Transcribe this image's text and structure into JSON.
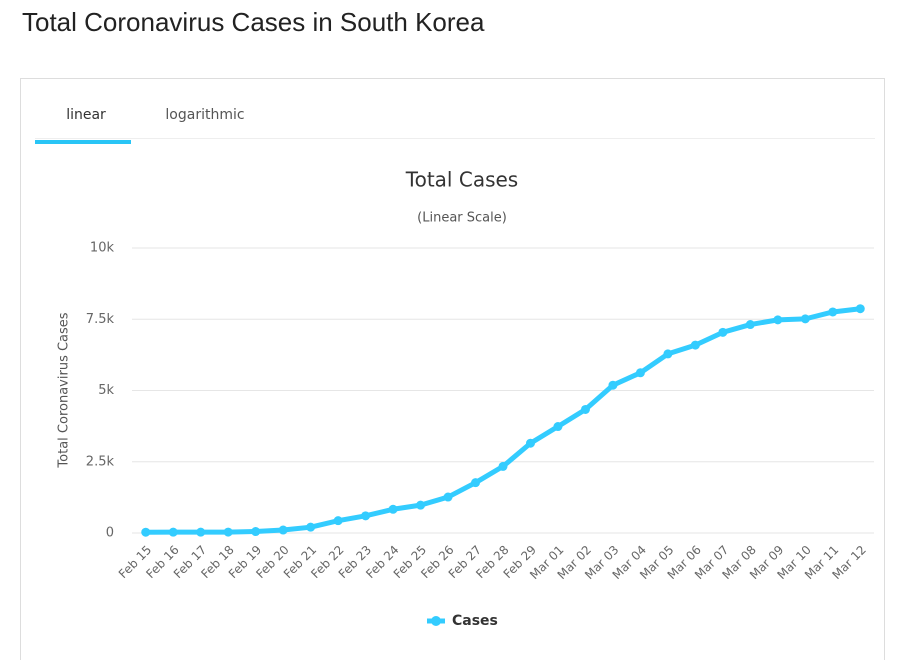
{
  "page": {
    "title": "Total Coronavirus Cases in South Korea",
    "tabs": [
      "linear",
      "logarithmic"
    ]
  },
  "chart_data": {
    "type": "line",
    "title": "Total Cases",
    "subtitle": "(Linear Scale)",
    "y_label": "Total Coronavirus Cases",
    "categories": [
      "Feb 15",
      "Feb 16",
      "Feb 17",
      "Feb 18",
      "Feb 19",
      "Feb 20",
      "Feb 21",
      "Feb 22",
      "Feb 23",
      "Feb 24",
      "Feb 25",
      "Feb 26",
      "Feb 27",
      "Feb 28",
      "Feb 29",
      "Mar 01",
      "Mar 02",
      "Mar 03",
      "Mar 04",
      "Mar 05",
      "Mar 06",
      "Mar 07",
      "Mar 08",
      "Mar 09",
      "Mar 10",
      "Mar 11",
      "Mar 12"
    ],
    "series": [
      {
        "name": "Cases",
        "color": "#33ccff",
        "values": [
          28,
          29,
          30,
          31,
          51,
          104,
          204,
          433,
          602,
          833,
          977,
          1261,
          1766,
          2337,
          3150,
          3736,
          4335,
          5186,
          5621,
          6284,
          6593,
          7041,
          7314,
          7478,
          7513,
          7755,
          7869
        ]
      }
    ],
    "ylim": [
      0,
      10000
    ],
    "yticks": [
      0,
      {
        "value": 2500,
        "label": "2.5k"
      },
      {
        "value": 5000,
        "label": "5k"
      },
      {
        "value": 7500,
        "label": "7.5k"
      },
      {
        "value": 10000,
        "label": "10k"
      }
    ],
    "grid": true,
    "legend": "bottom"
  }
}
